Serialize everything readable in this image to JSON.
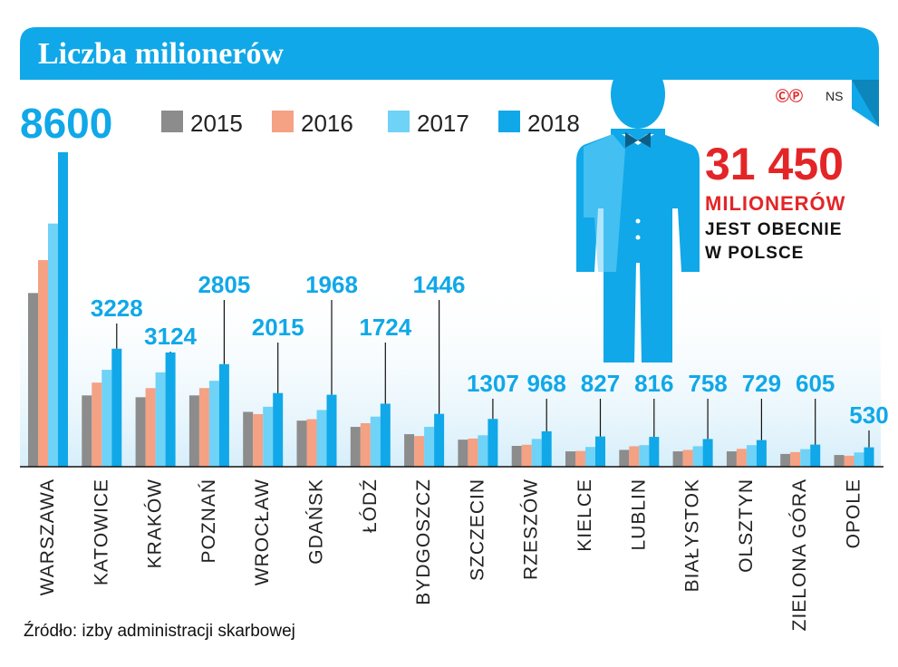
{
  "header": {
    "title": "Liczba milionerów"
  },
  "copyright": {
    "symbols": "ⒸⓅ",
    "initials": "NS"
  },
  "legend": {
    "items": [
      {
        "label": "2015",
        "color": "#8c8c8c"
      },
      {
        "label": "2016",
        "color": "#f4a184"
      },
      {
        "label": "2017",
        "color": "#6fd2f7"
      },
      {
        "label": "2018",
        "color": "#10a8e8"
      }
    ]
  },
  "total": {
    "value": "31 450",
    "unit": "MILIONERÓW",
    "line1": "JEST OBECNIE",
    "line2": "W POLSCE"
  },
  "source": {
    "text": "Źródło: izby administracji skarbowej"
  },
  "chart_data": {
    "type": "bar",
    "title": "Liczba milionerów",
    "xlabel": "",
    "ylabel": "",
    "ylim": [
      0,
      8600
    ],
    "grid": false,
    "legend_position": "top",
    "categories": [
      "Warszawa",
      "Katowice",
      "Kraków",
      "Poznań",
      "Wrocław",
      "Gdańsk",
      "Łódź",
      "Bydgoszcz",
      "Szczecin",
      "Rzeszów",
      "Kielce",
      "Lublin",
      "Białystok",
      "Olsztyn",
      "Zielona Góra",
      "Opole"
    ],
    "series": [
      {
        "name": "2015",
        "color": "#8c8c8c",
        "values": [
          4750,
          1950,
          1900,
          1950,
          1500,
          1260,
          1090,
          890,
          740,
          570,
          420,
          460,
          420,
          420,
          350,
          320
        ]
      },
      {
        "name": "2016",
        "color": "#f4a184",
        "values": [
          5650,
          2300,
          2150,
          2150,
          1440,
          1300,
          1190,
          840,
          770,
          600,
          430,
          560,
          460,
          490,
          400,
          300
        ]
      },
      {
        "name": "2017",
        "color": "#6fd2f7",
        "values": [
          6650,
          2650,
          2580,
          2350,
          1640,
          1550,
          1370,
          1090,
          860,
          760,
          540,
          590,
          560,
          590,
          480,
          390
        ]
      },
      {
        "name": "2018",
        "color": "#10a8e8",
        "values": [
          8600,
          3228,
          3124,
          2805,
          2015,
          1968,
          1724,
          1446,
          1307,
          968,
          827,
          816,
          758,
          729,
          605,
          530
        ]
      }
    ],
    "labels_2018": [
      "8600",
      "3228",
      "3124",
      "2805",
      "2015",
      "1968",
      "1724",
      "1446",
      "1307",
      "968",
      "827",
      "816",
      "758",
      "729",
      "605",
      "530"
    ]
  }
}
